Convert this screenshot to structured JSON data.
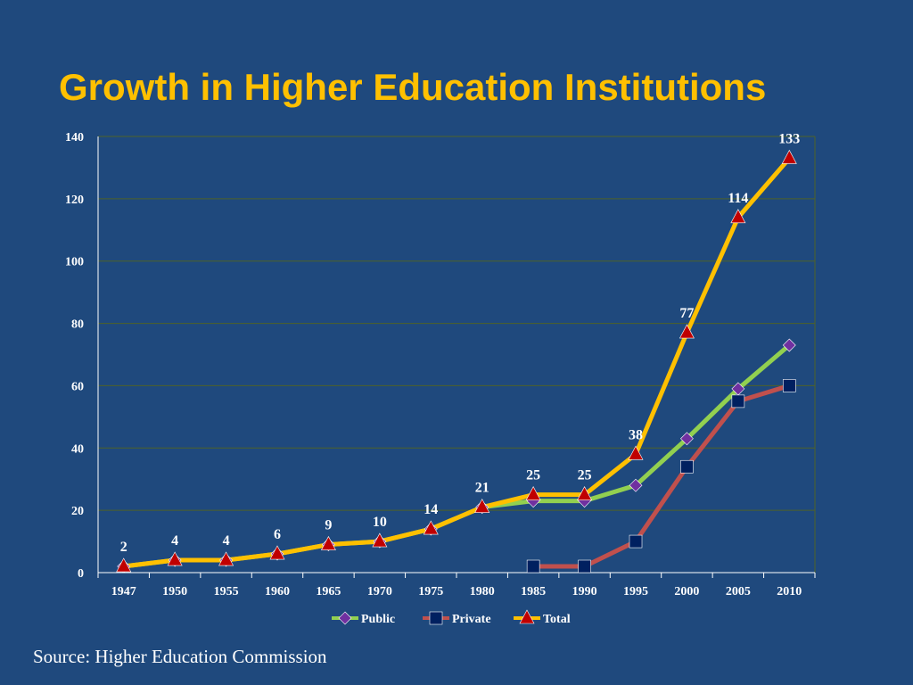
{
  "title": "Growth in Higher Education Institutions",
  "source": "Source: Higher Education Commission",
  "colors": {
    "background": "#1f497d",
    "title": "#ffc000",
    "gridline": "#4f6228",
    "public_line": "#92d050",
    "public_marker": "#7030a0",
    "private_line": "#c0504d",
    "private_marker": "#002060",
    "total_line": "#ffc000",
    "total_marker": "#c00000"
  },
  "chart_data": {
    "type": "line",
    "categories": [
      "1947",
      "1950",
      "1955",
      "1960",
      "1965",
      "1970",
      "1975",
      "1980",
      "1985",
      "1990",
      "1995",
      "2000",
      "2005",
      "2010"
    ],
    "ylim": [
      0,
      140
    ],
    "yticks": [
      0,
      20,
      40,
      60,
      80,
      100,
      120,
      140
    ],
    "grid": true,
    "legend": "bottom",
    "series": [
      {
        "name": "Public",
        "marker": "diamond",
        "values": [
          2,
          4,
          4,
          6,
          9,
          10,
          14,
          21,
          23,
          23,
          28,
          43,
          59,
          73
        ]
      },
      {
        "name": "Private",
        "marker": "square",
        "values": [
          null,
          null,
          null,
          null,
          null,
          null,
          null,
          null,
          2,
          2,
          10,
          34,
          55,
          60
        ]
      },
      {
        "name": "Total",
        "marker": "triangle",
        "values": [
          2,
          4,
          4,
          6,
          9,
          10,
          14,
          21,
          25,
          25,
          38,
          77,
          114,
          133
        ],
        "data_labels": [
          "2",
          "4",
          "4",
          "6",
          "9",
          "10",
          "14",
          "21",
          "25",
          "25",
          "38",
          "77",
          "114",
          "133"
        ]
      }
    ]
  }
}
